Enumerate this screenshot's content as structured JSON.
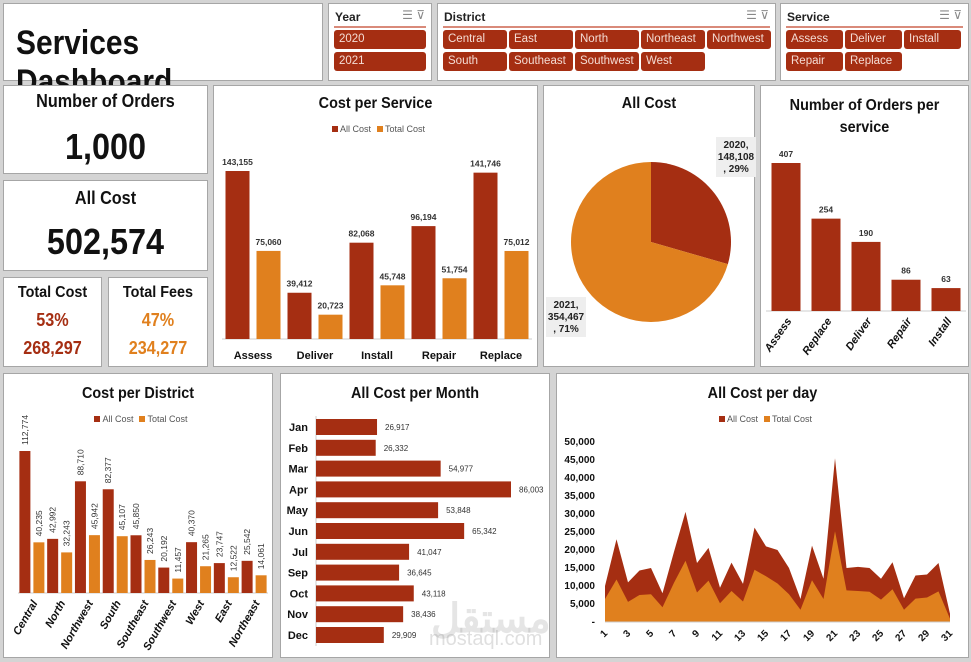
{
  "title": "Services Dashboard",
  "colors": {
    "all_cost": "#a52e12",
    "total_cost": "#e0801e",
    "chip_bg": "#a52e12"
  },
  "slicers": {
    "year": {
      "label": "Year",
      "items": [
        "2020",
        "2021"
      ]
    },
    "district": {
      "label": "District",
      "items": [
        "Central",
        "East",
        "North",
        "Northeast",
        "Northwest",
        "South",
        "Southeast",
        "Southwest",
        "West"
      ]
    },
    "service": {
      "label": "Service",
      "items": [
        "Assess",
        "Deliver",
        "Install",
        "Repair",
        "Replace"
      ]
    },
    "icons": [
      "multi-select-icon",
      "clear-filter-icon"
    ]
  },
  "kpis": {
    "orders": {
      "label": "Number of Orders",
      "value": "1,000"
    },
    "all_cost": {
      "label": "All Cost",
      "value": "502,574"
    },
    "total_cost": {
      "label": "Total Cost",
      "pct": "53%",
      "value": "268,297"
    },
    "total_fees": {
      "label": "Total Fees",
      "pct": "47%",
      "value": "234,277"
    }
  },
  "legend": {
    "all_cost": "All Cost",
    "total_cost": "Total Cost"
  },
  "watermark": {
    "arabic": "مستقل",
    "latin": "mostaql.com"
  },
  "chart_data": [
    {
      "id": "service",
      "type": "bar",
      "title": "Cost per Service",
      "categories": [
        "Assess",
        "Deliver",
        "Install",
        "Repair",
        "Replace"
      ],
      "series": [
        {
          "name": "All Cost",
          "values": [
            143155,
            39412,
            82068,
            96194,
            141746
          ]
        },
        {
          "name": "Total Cost",
          "values": [
            75060,
            20723,
            45748,
            51754,
            75012
          ]
        }
      ],
      "legend": "top"
    },
    {
      "id": "pie",
      "type": "pie",
      "title": "All Cost",
      "categories": [
        "2020",
        "2021"
      ],
      "values": [
        148108,
        354467
      ],
      "labels": [
        "2020,\n148,108\n, 29%",
        "2021,\n354,467\n, 71%"
      ]
    },
    {
      "id": "orders",
      "type": "bar",
      "title": "Number of Orders per service",
      "categories": [
        "Assess",
        "Replace",
        "Deliver",
        "Repair",
        "Install"
      ],
      "values": [
        407,
        254,
        190,
        86,
        63
      ]
    },
    {
      "id": "district",
      "type": "bar",
      "title": "Cost per District",
      "categories": [
        "Central",
        "North",
        "Northwest",
        "South",
        "Southeast",
        "Southwest",
        "West",
        "East",
        "Northeast"
      ],
      "series": [
        {
          "name": "All Cost",
          "values": [
            112774,
            42992,
            88710,
            82377,
            45850,
            20192,
            40370,
            23747,
            25542
          ]
        },
        {
          "name": "Total Cost",
          "values": [
            40235,
            32243,
            45942,
            45107,
            26243,
            11457,
            21265,
            12522,
            14061
          ]
        }
      ],
      "legend": "top"
    },
    {
      "id": "month",
      "type": "bar",
      "orientation": "horizontal",
      "title": "All Cost per Month",
      "categories": [
        "Jan",
        "Feb",
        "Mar",
        "Apr",
        "May",
        "Jun",
        "Jul",
        "Sep",
        "Oct",
        "Nov",
        "Dec"
      ],
      "values": [
        26917,
        26332,
        54977,
        86003,
        53848,
        65342,
        41047,
        36645,
        43118,
        38436,
        29909
      ]
    },
    {
      "id": "day",
      "type": "area",
      "title": "All Cost per day",
      "x": [
        1,
        2,
        3,
        4,
        5,
        6,
        7,
        8,
        9,
        10,
        11,
        12,
        13,
        14,
        15,
        16,
        17,
        18,
        19,
        20,
        21,
        22,
        23,
        24,
        25,
        26,
        27,
        28,
        29,
        30,
        31
      ],
      "series": [
        {
          "name": "All Cost",
          "values": [
            10000,
            23000,
            11000,
            14300,
            15000,
            8000,
            19500,
            30600,
            16400,
            20600,
            9500,
            16500,
            10600,
            26200,
            21000,
            20000,
            15000,
            6400,
            21200,
            12000,
            45500,
            15000,
            15300,
            15000,
            12000,
            16600,
            6600,
            12900,
            13200,
            16400,
            2300
          ]
        },
        {
          "name": "Total Cost",
          "values": [
            6400,
            11800,
            5600,
            7500,
            7700,
            4100,
            10900,
            17000,
            8200,
            11500,
            5200,
            8600,
            5700,
            14500,
            12700,
            10700,
            7700,
            3400,
            11600,
            6400,
            25200,
            8800,
            8600,
            8400,
            6200,
            9100,
            3400,
            6500,
            6800,
            8500,
            900
          ]
        }
      ],
      "ylim": [
        0,
        50000
      ],
      "yticks": [
        "-",
        "5,000",
        "10,000",
        "15,000",
        "20,000",
        "25,000",
        "30,000",
        "35,000",
        "40,000",
        "45,000",
        "50,000"
      ],
      "legend": "top"
    }
  ]
}
